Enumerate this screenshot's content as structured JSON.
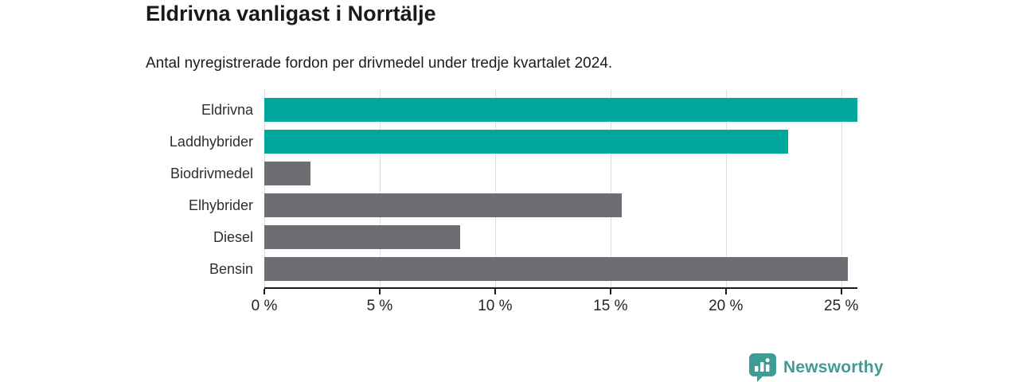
{
  "header": {
    "title": "Eldrivna vanligast i Norrtälje",
    "subtitle": "Antal nyregistrerade fordon per drivmedel under tredje kvartalet 2024."
  },
  "chart_data": {
    "type": "bar",
    "orientation": "horizontal",
    "title": "Eldrivna vanligast i Norrtälje",
    "subtitle": "Antal nyregistrerade fordon per drivmedel under tredje kvartalet 2024.",
    "categories": [
      "Eldrivna",
      "Laddhybrider",
      "Biodrivmedel",
      "Elhybrider",
      "Diesel",
      "Bensin"
    ],
    "values": [
      25.7,
      22.7,
      2.0,
      15.5,
      8.5,
      25.3
    ],
    "unit": "%",
    "bar_colors": [
      "#00A79C",
      "#00A79C",
      "#6D6D72",
      "#6D6D72",
      "#6D6D72",
      "#6D6D72"
    ],
    "highlight_color": "#00A79C",
    "default_color": "#6D6D72",
    "xlim": [
      0,
      25.7
    ],
    "x_ticks": [
      0,
      5,
      10,
      15,
      20,
      25
    ],
    "x_tick_labels": [
      "0 %",
      "5 %",
      "10 %",
      "15 %",
      "20 %",
      "25 %"
    ],
    "grid": true,
    "gridline_color": "#DCDCDC",
    "axis_color": "#1A1A1A",
    "legend": "none",
    "data_labels": "none"
  },
  "footer": {
    "brand": "Newsworthy",
    "brand_color": "#3F9C95"
  }
}
